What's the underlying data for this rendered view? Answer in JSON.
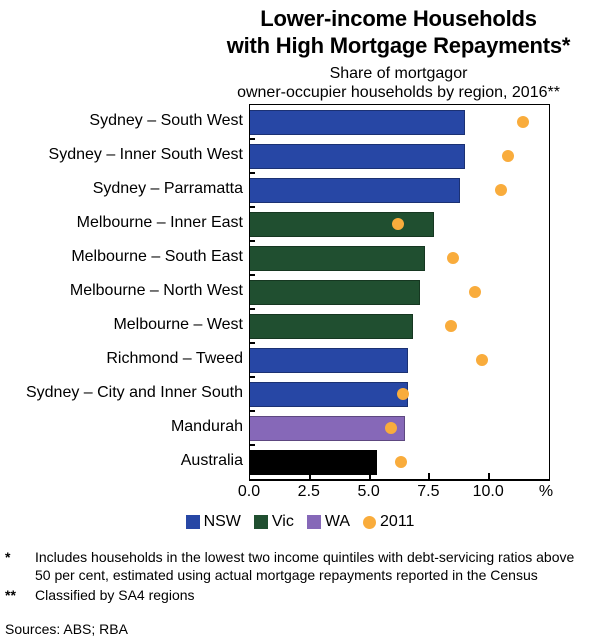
{
  "title": {
    "line1": "Lower-income Households",
    "line2": "with High Mortgage Repayments*"
  },
  "subtitle": {
    "line1": "Share of mortgagor",
    "line2": "owner-occupier households by region, 2016**"
  },
  "chart_data": {
    "type": "bar",
    "orientation": "horizontal",
    "title": "Lower-income Households with High Mortgage Repayments*",
    "subtitle": "Share of mortgagor owner-occupier households by region, 2016**",
    "unit": "%",
    "xlim": [
      0,
      12.5
    ],
    "xtick_labels": [
      "0.0",
      "2.5",
      "5.0",
      "7.5",
      "10.0"
    ],
    "xtick_values": [
      0,
      2.5,
      5,
      7.5,
      10
    ],
    "grid": false,
    "legend_position": "bottom",
    "categories": [
      "Sydney – South West",
      "Sydney – Inner South West",
      "Sydney – Parramatta",
      "Melbourne – Inner East",
      "Melbourne – South East",
      "Melbourne – North West",
      "Melbourne – West",
      "Richmond – Tweed",
      "Sydney – City and Inner South",
      "Mandurah",
      "Australia"
    ],
    "bar_groups": [
      "NSW",
      "NSW",
      "NSW",
      "Vic",
      "Vic",
      "Vic",
      "Vic",
      "NSW",
      "NSW",
      "WA",
      "Australia"
    ],
    "series": [
      {
        "name": "2016 (bars)",
        "marker": "bar",
        "values": [
          9.0,
          9.0,
          8.8,
          7.7,
          7.3,
          7.1,
          6.8,
          6.6,
          6.6,
          6.5,
          5.3
        ]
      },
      {
        "name": "2011",
        "marker": "dot",
        "values": [
          11.4,
          10.8,
          10.5,
          6.2,
          8.5,
          9.4,
          8.4,
          9.7,
          6.4,
          5.9,
          6.3
        ]
      }
    ]
  },
  "colors": {
    "NSW": "#2747A5",
    "Vic": "#204F30",
    "WA": "#8668B8",
    "Australia": "#000000",
    "dot_2011": "#F9AC3C"
  },
  "legend": [
    {
      "label": "NSW",
      "color_key": "NSW",
      "shape": "square"
    },
    {
      "label": "Vic",
      "color_key": "Vic",
      "shape": "square"
    },
    {
      "label": "WA",
      "color_key": "WA",
      "shape": "square"
    },
    {
      "label": "2011",
      "color_key": "dot_2011",
      "shape": "circle"
    }
  ],
  "footnotes": [
    {
      "marker": "*",
      "text": "Includes households in the lowest two income quintiles with debt-servicing ratios above 50 per cent, estimated using actual mortgage repayments reported in the Census"
    },
    {
      "marker": "**",
      "text": "Classified by SA4 regions"
    }
  ],
  "sources": "Sources: ABS; RBA"
}
